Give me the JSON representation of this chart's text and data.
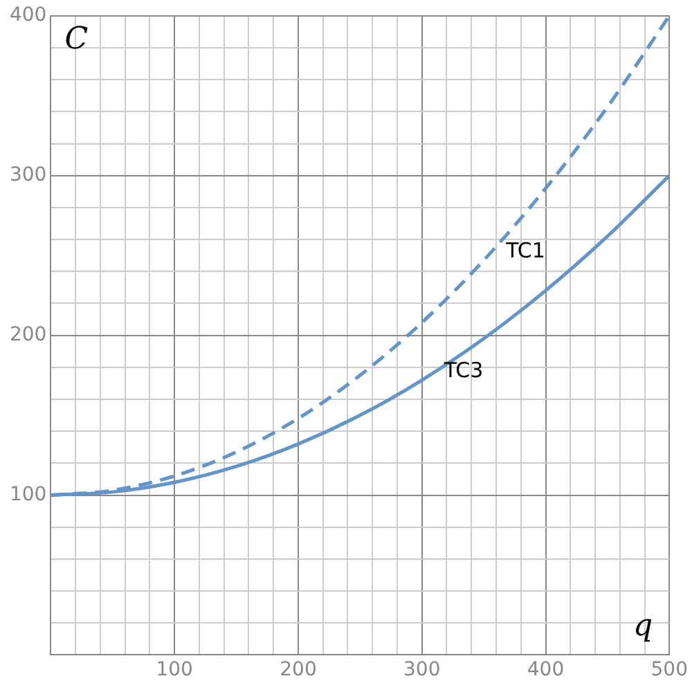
{
  "chart_data": {
    "type": "line",
    "xlabel": "q",
    "ylabel": "C",
    "x": [
      0,
      50,
      100,
      150,
      200,
      250,
      300,
      350,
      400,
      450,
      500
    ],
    "series": [
      {
        "name": "TC1",
        "color": "#6495c8",
        "line_style": "dashed",
        "values": [
          100,
          103,
          112,
          127,
          148,
          175,
          208,
          247,
          292,
          343,
          400
        ]
      },
      {
        "name": "TC3",
        "color": "#6495c8",
        "line_style": "solid",
        "values": [
          100,
          102,
          108,
          118,
          132,
          150,
          172,
          198,
          228,
          262,
          300
        ]
      }
    ],
    "xlim": [
      0,
      500
    ],
    "ylim": [
      0,
      400
    ],
    "xticks": [
      {
        "value": 0,
        "label": null
      },
      {
        "value": 20,
        "label": null
      },
      {
        "value": 40,
        "label": null
      },
      {
        "value": 60,
        "label": null
      },
      {
        "value": 80,
        "label": null
      },
      100,
      {
        "value": 120,
        "label": null
      },
      {
        "value": 140,
        "label": null
      },
      {
        "value": 160,
        "label": null
      },
      {
        "value": 180,
        "label": null
      },
      200,
      {
        "value": 220,
        "label": null
      },
      {
        "value": 240,
        "label": null
      },
      {
        "value": 260,
        "label": null
      },
      {
        "value": 280,
        "label": null
      },
      300,
      {
        "value": 320,
        "label": null
      },
      {
        "value": 340,
        "label": null
      },
      {
        "value": 360,
        "label": null
      },
      {
        "value": 380,
        "label": null
      },
      400,
      {
        "value": 420,
        "label": null
      },
      {
        "value": 440,
        "label": null
      },
      {
        "value": 460,
        "label": null
      },
      {
        "value": 480,
        "label": null
      },
      500
    ],
    "yticks": [
      {
        "value": 0,
        "label": null
      },
      {
        "value": 20,
        "label": null
      },
      {
        "value": 40,
        "label": null
      },
      {
        "value": 60,
        "label": null
      },
      {
        "value": 80,
        "label": null
      },
      100,
      {
        "value": 120,
        "label": null
      },
      {
        "value": 140,
        "label": null
      },
      {
        "value": 160,
        "label": null
      },
      {
        "value": 180,
        "label": null
      },
      200,
      {
        "value": 220,
        "label": null
      },
      {
        "value": 240,
        "label": null
      },
      {
        "value": 260,
        "label": null
      },
      {
        "value": 280,
        "label": null
      },
      300,
      {
        "value": 320,
        "label": null
      },
      {
        "value": 340,
        "label": null
      },
      {
        "value": 360,
        "label": null
      },
      {
        "value": 380,
        "label": null
      },
      400
    ],
    "grid": true,
    "legend": false,
    "marker": "none"
  }
}
